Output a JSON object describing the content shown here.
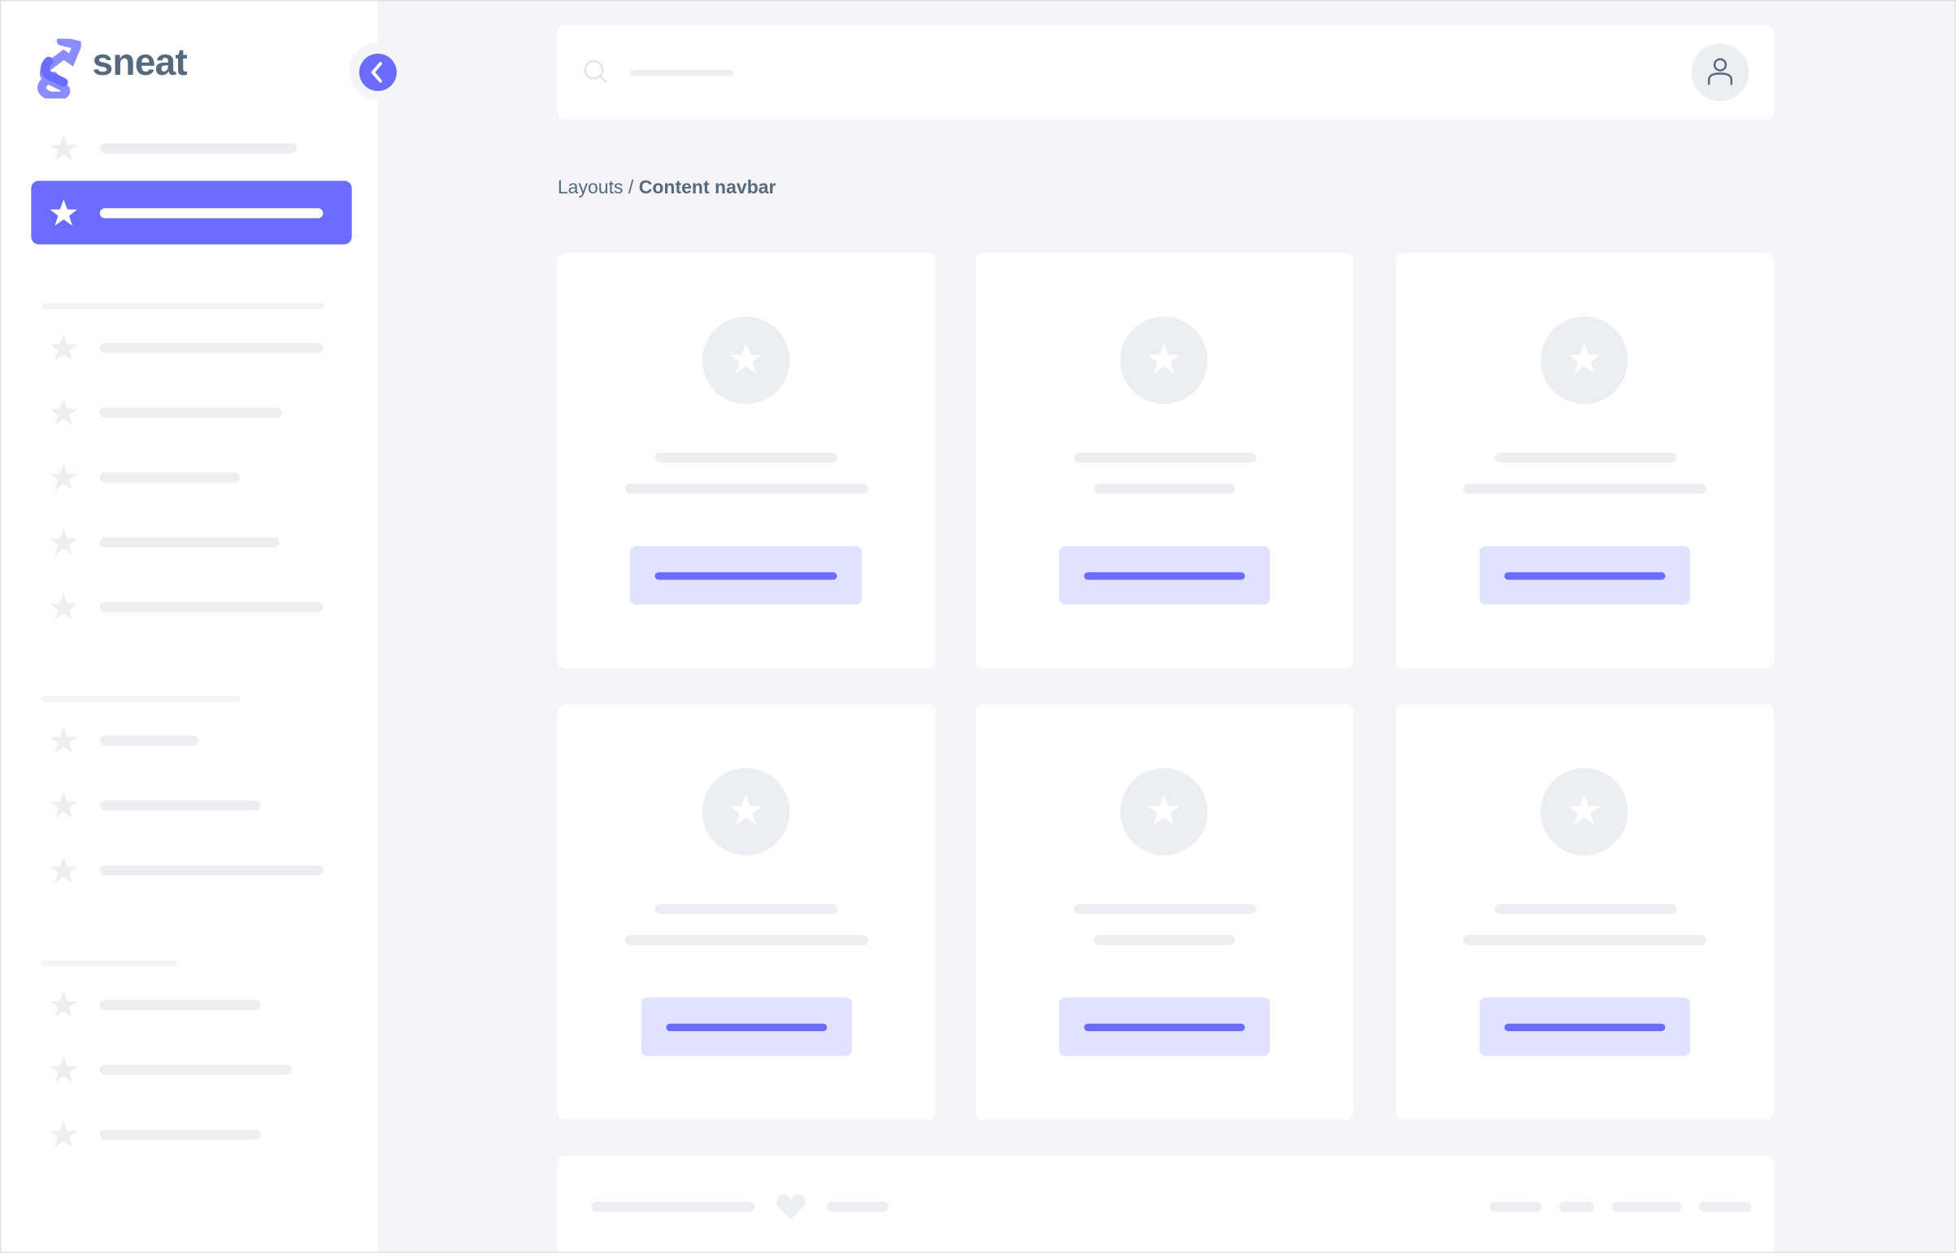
{
  "app": {
    "logo_text": "sneat"
  },
  "breadcrumb": {
    "parent": "Layouts",
    "separator": " / ",
    "current": "Content navbar"
  },
  "colors": {
    "primary": "#696cff",
    "primary_light": "#e1e2ff",
    "text": "#566a7f",
    "background": "#f5f5f9",
    "placeholder": "#edeef2"
  },
  "icons": {
    "logo": "sneat-logo-icon",
    "collapse": "chevron-left-icon",
    "search": "search-icon",
    "user": "user-icon",
    "menu_item": "star-icon",
    "card": "star-icon",
    "footer": "heart-icon"
  },
  "sidebar": {
    "active_index": 1
  },
  "cards": {
    "count": 6
  }
}
